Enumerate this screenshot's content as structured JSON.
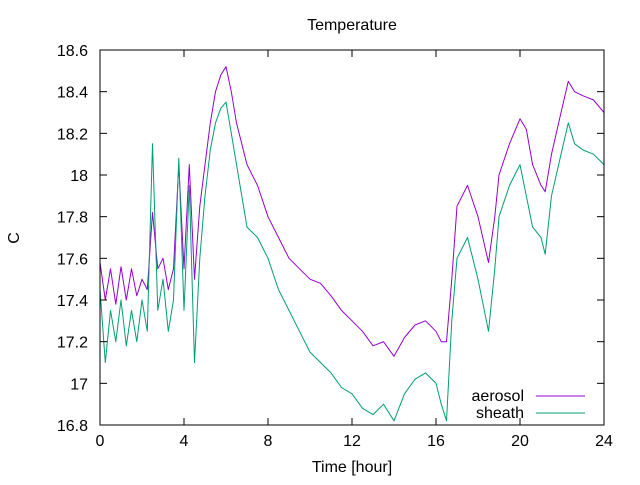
{
  "chart_data": {
    "type": "line",
    "title": "Temperature",
    "xlabel": "Time [hour]",
    "ylabel": "C",
    "xlim": [
      0,
      24
    ],
    "ylim": [
      16.8,
      18.6
    ],
    "x_ticks": [
      0,
      4,
      8,
      12,
      16,
      20,
      24
    ],
    "y_ticks": [
      16.8,
      17.0,
      17.2,
      17.4,
      17.6,
      17.8,
      18.0,
      18.2,
      18.4,
      18.6
    ],
    "x_tick_labels": [
      "0",
      "4",
      "8",
      "12",
      "16",
      "20",
      "24"
    ],
    "y_tick_labels": [
      "16.8",
      "17",
      "17.2",
      "17.4",
      "17.6",
      "17.8",
      "18",
      "18.2",
      "18.4",
      "18.6"
    ],
    "grid": false,
    "legend_position": "bottom-right",
    "series": [
      {
        "name": "aerosol",
        "color": "#9400d3",
        "x": [
          0,
          0.25,
          0.5,
          0.75,
          1.0,
          1.25,
          1.5,
          1.75,
          2.0,
          2.25,
          2.5,
          2.75,
          3.0,
          3.25,
          3.5,
          3.75,
          4.0,
          4.25,
          4.5,
          4.75,
          5.0,
          5.25,
          5.5,
          5.75,
          6.0,
          6.25,
          6.5,
          7.0,
          7.5,
          8.0,
          8.5,
          9.0,
          9.5,
          10.0,
          10.5,
          11.0,
          11.5,
          12.0,
          12.5,
          13.0,
          13.5,
          14.0,
          14.5,
          15.0,
          15.5,
          16.0,
          16.25,
          16.5,
          16.75,
          17.0,
          17.5,
          18.0,
          18.5,
          18.8,
          19.0,
          19.5,
          20.0,
          20.3,
          20.6,
          21.0,
          21.2,
          21.5,
          22.0,
          22.3,
          22.6,
          23.0,
          23.5,
          24.0
        ],
        "y": [
          17.58,
          17.4,
          17.55,
          17.38,
          17.56,
          17.4,
          17.55,
          17.42,
          17.5,
          17.45,
          17.82,
          17.55,
          17.6,
          17.45,
          17.55,
          18.05,
          17.55,
          18.05,
          17.5,
          17.85,
          18.05,
          18.25,
          18.4,
          18.48,
          18.52,
          18.4,
          18.25,
          18.05,
          17.95,
          17.8,
          17.7,
          17.6,
          17.55,
          17.5,
          17.48,
          17.42,
          17.35,
          17.3,
          17.25,
          17.18,
          17.2,
          17.13,
          17.22,
          17.28,
          17.3,
          17.25,
          17.2,
          17.2,
          17.5,
          17.85,
          17.95,
          17.8,
          17.58,
          17.8,
          18.0,
          18.15,
          18.27,
          18.22,
          18.05,
          17.95,
          17.92,
          18.1,
          18.32,
          18.45,
          18.4,
          18.38,
          18.36,
          18.3
        ]
      },
      {
        "name": "sheath",
        "color": "#009e73",
        "x": [
          0,
          0.25,
          0.5,
          0.75,
          1.0,
          1.25,
          1.5,
          1.75,
          2.0,
          2.25,
          2.5,
          2.75,
          3.0,
          3.25,
          3.5,
          3.75,
          4.0,
          4.25,
          4.5,
          4.75,
          5.0,
          5.25,
          5.5,
          5.75,
          6.0,
          6.25,
          6.5,
          7.0,
          7.5,
          8.0,
          8.5,
          9.0,
          9.5,
          10.0,
          10.5,
          11.0,
          11.5,
          12.0,
          12.5,
          13.0,
          13.5,
          14.0,
          14.5,
          15.0,
          15.5,
          16.0,
          16.25,
          16.5,
          16.75,
          17.0,
          17.5,
          18.0,
          18.5,
          18.8,
          19.0,
          19.5,
          20.0,
          20.3,
          20.6,
          21.0,
          21.2,
          21.5,
          22.0,
          22.3,
          22.6,
          23.0,
          23.5,
          24.0
        ],
        "y": [
          17.45,
          17.1,
          17.35,
          17.2,
          17.4,
          17.18,
          17.35,
          17.2,
          17.4,
          17.25,
          18.15,
          17.35,
          17.5,
          17.25,
          17.4,
          18.08,
          17.35,
          17.95,
          17.1,
          17.6,
          17.9,
          18.12,
          18.25,
          18.32,
          18.35,
          18.2,
          18.05,
          17.75,
          17.7,
          17.6,
          17.45,
          17.35,
          17.25,
          17.15,
          17.1,
          17.05,
          16.98,
          16.95,
          16.88,
          16.85,
          16.9,
          16.82,
          16.95,
          17.02,
          17.05,
          17.0,
          16.9,
          16.82,
          17.3,
          17.6,
          17.7,
          17.5,
          17.25,
          17.55,
          17.8,
          17.95,
          18.05,
          17.9,
          17.75,
          17.7,
          17.62,
          17.9,
          18.12,
          18.25,
          18.15,
          18.12,
          18.1,
          18.05
        ]
      }
    ]
  }
}
